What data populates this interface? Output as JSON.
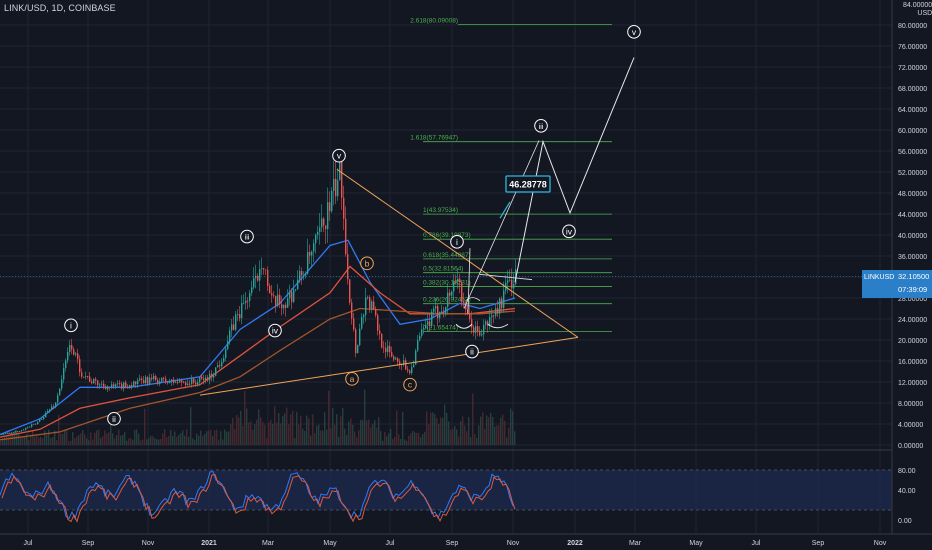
{
  "header": {
    "title": "LINK/USD, 1D, COINBASE"
  },
  "axis_currency": {
    "top": "84.00000",
    "unit": "USD"
  },
  "price_tag": {
    "symbol": "LINKUSD",
    "price": "32.10500",
    "countdown": "07:39:09"
  },
  "target_label": "46.28778",
  "chart_data": {
    "type": "candlestick",
    "title": "LINK/USD, 1D, COINBASE",
    "y_axis": {
      "ticks": [
        "80.00000",
        "76.00000",
        "72.00000",
        "68.00000",
        "64.00000",
        "60.00000",
        "56.00000",
        "52.00000",
        "48.00000",
        "44.00000",
        "40.00000",
        "36.00000",
        "32.00000",
        "28.00000",
        "24.00000",
        "20.00000",
        "16.00000",
        "12.00000",
        "8.00000",
        "4.00000",
        "0.00000"
      ],
      "values": [
        80,
        76,
        72,
        68,
        64,
        60,
        56,
        52,
        48,
        44,
        40,
        36,
        32,
        28,
        24,
        20,
        16,
        12,
        8,
        4,
        0
      ],
      "ylim": [
        0,
        84
      ]
    },
    "x_axis": {
      "ticks": [
        "Jul",
        "Sep",
        "Nov",
        "2021",
        "Mar",
        "May",
        "Jul",
        "Sep",
        "Nov",
        "2022",
        "Mar",
        "May",
        "Jul",
        "Sep",
        "Nov"
      ]
    },
    "price_path": [
      [
        0,
        2
      ],
      [
        15,
        2.5
      ],
      [
        35,
        4
      ],
      [
        55,
        8
      ],
      [
        70,
        19.5
      ],
      [
        80,
        14
      ],
      [
        92,
        12
      ],
      [
        110,
        11
      ],
      [
        130,
        11.5
      ],
      [
        150,
        12.5
      ],
      [
        170,
        12
      ],
      [
        195,
        12
      ],
      [
        210,
        13
      ],
      [
        220,
        16
      ],
      [
        235,
        24
      ],
      [
        255,
        31
      ],
      [
        262,
        36.5
      ],
      [
        270,
        27
      ],
      [
        285,
        27
      ],
      [
        300,
        32
      ],
      [
        315,
        38
      ],
      [
        330,
        46
      ],
      [
        340,
        52.5
      ],
      [
        348,
        30
      ],
      [
        355,
        18
      ],
      [
        365,
        28
      ],
      [
        372,
        26
      ],
      [
        380,
        20
      ],
      [
        390,
        17
      ],
      [
        400,
        16
      ],
      [
        410,
        14
      ],
      [
        418,
        20
      ],
      [
        430,
        24
      ],
      [
        445,
        27
      ],
      [
        458,
        33
      ],
      [
        462,
        26
      ],
      [
        470,
        23
      ],
      [
        478,
        21
      ],
      [
        490,
        24
      ],
      [
        500,
        27
      ],
      [
        508,
        31
      ],
      [
        515,
        32
      ]
    ],
    "moving_averages": [
      {
        "color": "#3179f5",
        "points": [
          [
            0,
            2
          ],
          [
            40,
            5
          ],
          [
            80,
            11
          ],
          [
            130,
            11
          ],
          [
            200,
            13
          ],
          [
            240,
            22
          ],
          [
            280,
            27
          ],
          [
            330,
            38
          ],
          [
            348,
            39
          ],
          [
            370,
            31
          ],
          [
            400,
            23
          ],
          [
            430,
            24
          ],
          [
            460,
            27
          ],
          [
            480,
            26
          ],
          [
            515,
            28
          ]
        ]
      },
      {
        "color": "#e0533c",
        "points": [
          [
            0,
            1.5
          ],
          [
            40,
            3
          ],
          [
            80,
            7
          ],
          [
            130,
            9
          ],
          [
            200,
            11.5
          ],
          [
            240,
            17
          ],
          [
            280,
            22.5
          ],
          [
            330,
            29
          ],
          [
            350,
            34
          ],
          [
            380,
            29
          ],
          [
            410,
            25
          ],
          [
            440,
            25
          ],
          [
            470,
            25
          ],
          [
            515,
            26
          ]
        ]
      },
      {
        "color": "#a5562a",
        "points": [
          [
            0,
            1
          ],
          [
            60,
            2.5
          ],
          [
            130,
            7
          ],
          [
            200,
            10
          ],
          [
            240,
            13
          ],
          [
            280,
            18
          ],
          [
            330,
            24
          ],
          [
            360,
            26
          ],
          [
            400,
            25.5
          ],
          [
            440,
            25
          ],
          [
            480,
            25
          ],
          [
            515,
            25.5
          ]
        ]
      }
    ],
    "trendlines": {
      "upper": [
        [
          337,
          52.5
        ],
        [
          578,
          20.5
        ]
      ],
      "lower": [
        [
          200,
          9.5
        ],
        [
          578,
          20.5
        ]
      ]
    },
    "fib_levels": [
      {
        "label": "2.618(80.09008)",
        "value": 80.09
      },
      {
        "label": "1.618(57.76947)",
        "value": 57.77
      },
      {
        "label": "1(43.97534)",
        "value": 43.98
      },
      {
        "label": "0.786(39.19873)",
        "value": 39.2
      },
      {
        "label": "0.618(35.44887)",
        "value": 35.45
      },
      {
        "label": "0.5(32.81564)",
        "value": 32.82
      },
      {
        "label": "0.382(30.18231)",
        "value": 30.18
      },
      {
        "label": "0.236(26.92462)",
        "value": 26.92
      },
      {
        "label": "0(21.65474)",
        "value": 21.65
      }
    ],
    "projection": [
      [
        515,
        31
      ],
      [
        543,
        57.8
      ],
      [
        570,
        44.2
      ],
      [
        634,
        73.8
      ]
    ],
    "wave_labels": [
      {
        "text": "i",
        "x": 71,
        "price": 22.8,
        "color": "#ffffff"
      },
      {
        "text": "ii",
        "x": 114,
        "price": 5,
        "color": "#ffffff"
      },
      {
        "text": "iii",
        "x": 247,
        "price": 39.7,
        "color": "#ffffff"
      },
      {
        "text": "iv",
        "x": 275,
        "price": 21.8,
        "color": "#ffffff"
      },
      {
        "text": "v",
        "x": 339,
        "price": 55.1,
        "color": "#ffffff"
      },
      {
        "text": "a",
        "x": 352,
        "price": 12.6,
        "color": "#f0a55a"
      },
      {
        "text": "b",
        "x": 367,
        "price": 34.6,
        "color": "#f0a55a"
      },
      {
        "text": "c",
        "x": 410,
        "price": 11.5,
        "color": "#f0a55a"
      },
      {
        "text": "i",
        "x": 457,
        "price": 38.7,
        "color": "#ffffff"
      },
      {
        "text": "ii",
        "x": 472,
        "price": 17.8,
        "color": "#ffffff"
      },
      {
        "text": "iii",
        "x": 541,
        "price": 60.8,
        "color": "#ffffff"
      },
      {
        "text": "iv",
        "x": 569,
        "price": 40.7,
        "color": "#ffffff"
      },
      {
        "text": "v",
        "x": 634,
        "price": 78.7,
        "color": "#ffffff"
      }
    ],
    "stoch_rsi": {
      "ticks": [
        "80.00",
        "40.00",
        "0.00"
      ],
      "values": [
        80,
        40,
        0
      ]
    }
  }
}
